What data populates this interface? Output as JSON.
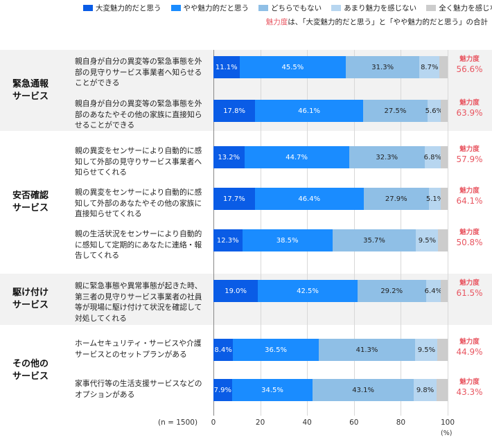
{
  "legend": [
    {
      "label": "大変魅力的だと思う",
      "color": "#0a5ce6"
    },
    {
      "label": "やや魅力的だと思う",
      "color": "#1a8cff"
    },
    {
      "label": "どちらでもない",
      "color": "#8fbfe6"
    },
    {
      "label": "あまり魅力を感じない",
      "color": "#b7d6f0"
    },
    {
      "label": "全く魅力を感じない",
      "color": "#cccccc"
    }
  ],
  "note": {
    "highlight": "魅力度",
    "text": "は、「大変魅力的だと思う」と「やや魅力的だと思う」の合計"
  },
  "n_label": "(n = 1500)",
  "unit_label": "(%)",
  "score_label": "魅力度",
  "chart_data": {
    "type": "bar",
    "orientation": "horizontal",
    "stacked": true,
    "xlim": [
      0,
      100
    ],
    "xticks": [
      0,
      20,
      40,
      60,
      80,
      100
    ],
    "series_names": [
      "大変魅力的だと思う",
      "やや魅力的だと思う",
      "どちらでもない",
      "あまり魅力を感じない",
      "全く魅力を感じない"
    ],
    "groups": [
      {
        "title": [
          "緊急通報",
          "サービス"
        ],
        "rows": [
          {
            "label": "親自身が自分の異変等の緊急事態を外部の見守りサービス事業者へ知らせることができる",
            "values": [
              11.1,
              45.5,
              31.3,
              8.7,
              3.4
            ],
            "shown": [
              "11.1%",
              "45.5%",
              "31.3%",
              "8.7%",
              ""
            ],
            "score": "56.6%"
          },
          {
            "label": "親自身が自分の異変等の緊急事態を外部のあなたやその他の家族に直接知らせることができる",
            "values": [
              17.8,
              46.1,
              27.5,
              5.6,
              3.0
            ],
            "shown": [
              "17.8%",
              "46.1%",
              "27.5%",
              "5.6%",
              ""
            ],
            "score": "63.9%"
          }
        ]
      },
      {
        "title": [
          "安否確認",
          "サービス"
        ],
        "rows": [
          {
            "label": "親の異変をセンサーにより自動的に感知して外部の見守りサービス事業者へ知らせてくれる",
            "values": [
              13.2,
              44.7,
              32.3,
              6.8,
              3.0
            ],
            "shown": [
              "13.2%",
              "44.7%",
              "32.3%",
              "6.8%",
              ""
            ],
            "score": "57.9%"
          },
          {
            "label": "親の異変をセンサーにより自動的に感知して外部のあなたやその他の家族に直接知らせてくれる",
            "values": [
              17.7,
              46.4,
              27.9,
              5.1,
              2.9
            ],
            "shown": [
              "17.7%",
              "46.4%",
              "27.9%",
              "5.1%",
              ""
            ],
            "score": "64.1%"
          },
          {
            "label": "親の生活状況をセンサーにより自動的に感知して定期的にあなたに連絡・報告してくれる",
            "values": [
              12.3,
              38.5,
              35.7,
              9.5,
              4.0
            ],
            "shown": [
              "12.3%",
              "38.5%",
              "35.7%",
              "9.5%",
              ""
            ],
            "score": "50.8%"
          }
        ]
      },
      {
        "title": [
          "駆け付け",
          "サービス"
        ],
        "rows": [
          {
            "label": "親に緊急事態や異常事態が起きた時、第三者の見守りサービス事業者の社員等が現場に駆け付けて状況を確認して対処してくれる",
            "values": [
              19.0,
              42.5,
              29.2,
              6.4,
              2.9
            ],
            "shown": [
              "19.0%",
              "42.5%",
              "29.2%",
              "6.4%",
              ""
            ],
            "score": "61.5%"
          }
        ]
      },
      {
        "title": [
          "その他の",
          "サービス"
        ],
        "rows": [
          {
            "label": "ホームセキュリティ・サービスや介護サービスとのセットプランがある",
            "values": [
              8.4,
              36.5,
              41.3,
              9.5,
              4.3
            ],
            "shown": [
              "8.4%",
              "36.5%",
              "41.3%",
              "9.5%",
              ""
            ],
            "score": "44.9%"
          },
          {
            "label": "家事代行等の生活支援サービスなどのオプションがある",
            "values": [
              7.9,
              34.5,
              43.1,
              9.8,
              4.7
            ],
            "shown": [
              "7.9%",
              "34.5%",
              "43.1%",
              "9.8%",
              ""
            ],
            "score": "43.3%"
          }
        ]
      }
    ]
  }
}
